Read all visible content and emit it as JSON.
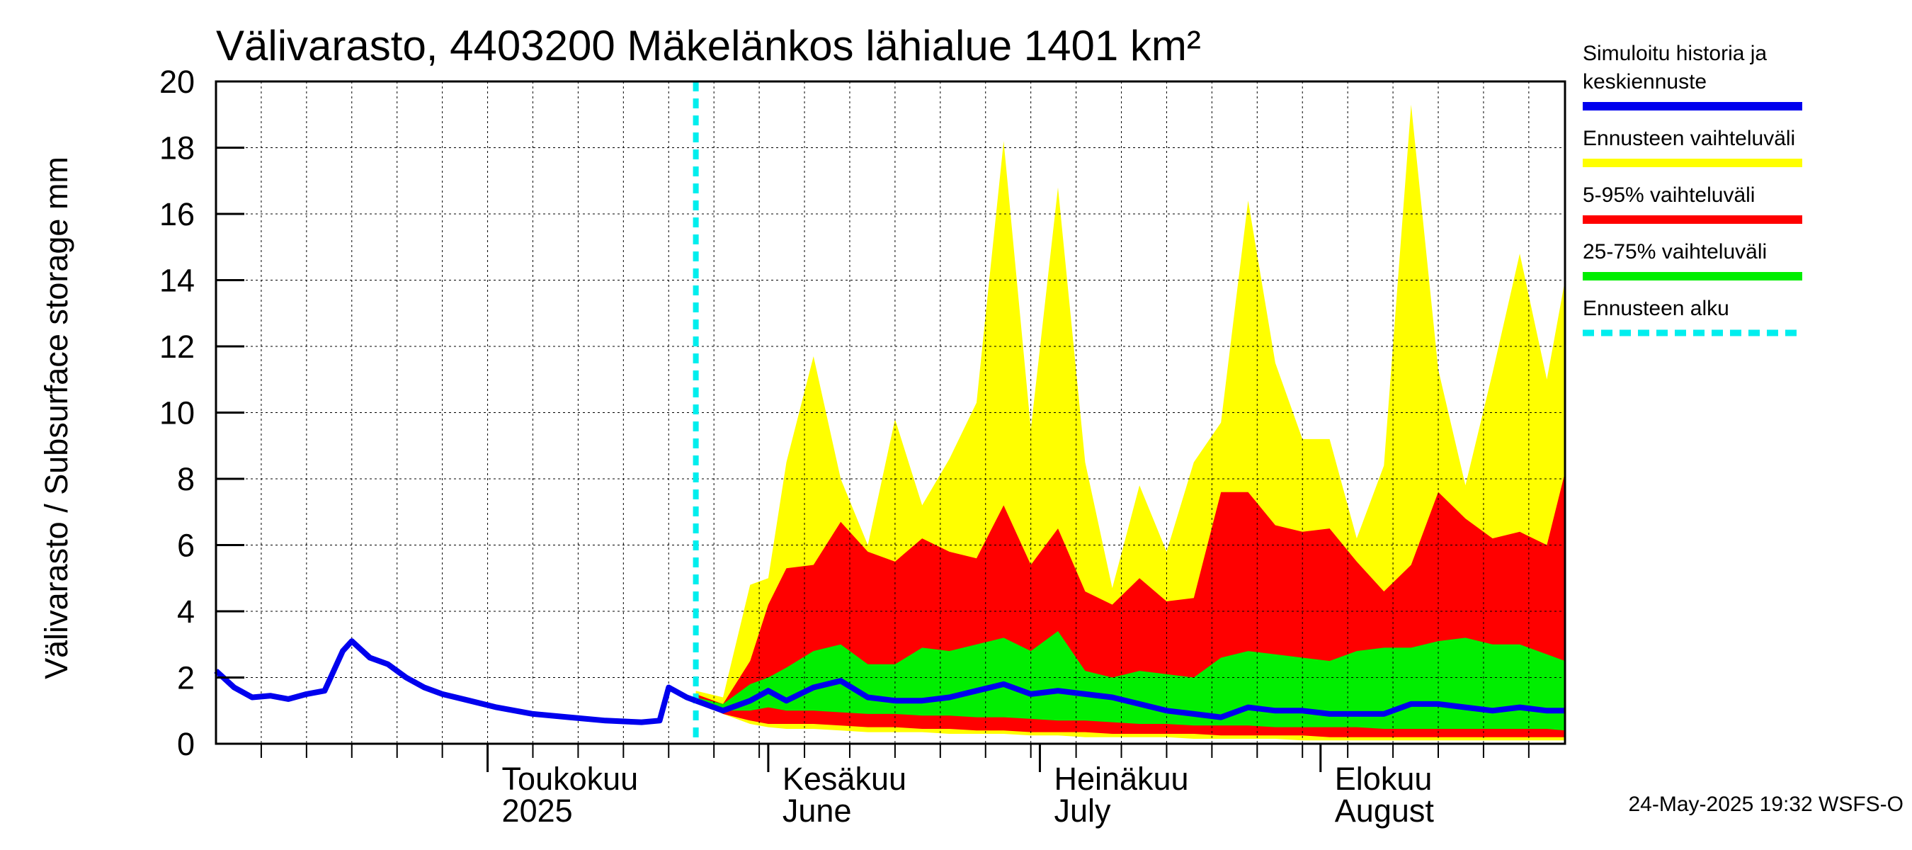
{
  "title": "Välivarasto, 4403200 Mäkelänkos lähialue 1401 km²",
  "ylabel": "Välivarasto / Subsurface storage  mm",
  "timestamp": "24-May-2025 19:32 WSFS-O",
  "colors": {
    "history": "#0000ee",
    "full_range": "#ffff00",
    "p5_95": "#ff0000",
    "p25_75": "#00ee00",
    "forecast_start": "#00eeee",
    "grid": "#000000"
  },
  "legend": [
    {
      "label_lines": [
        "Simuloitu historia ja",
        "keskiennuste"
      ],
      "color": "#0000ee",
      "style": "solid"
    },
    {
      "label_lines": [
        "Ennusteen vaihteluväli"
      ],
      "color": "#ffff00",
      "style": "solid"
    },
    {
      "label_lines": [
        "5-95% vaihteluväli"
      ],
      "color": "#ff0000",
      "style": "solid"
    },
    {
      "label_lines": [
        "25-75% vaihteluväli"
      ],
      "color": "#00ee00",
      "style": "solid"
    },
    {
      "label_lines": [
        "Ennusteen alku"
      ],
      "color": "#00eeee",
      "style": "dashed"
    }
  ],
  "month_labels": [
    {
      "line1": "Toukokuu",
      "line2": "2025",
      "date": "2025-05-01"
    },
    {
      "line1": "Kesäkuu",
      "line2": "June",
      "date": "2025-06-01"
    },
    {
      "line1": "Heinäkuu",
      "line2": "July",
      "date": "2025-07-01"
    },
    {
      "line1": "Elokuu",
      "line2": "August",
      "date": "2025-08-01"
    }
  ],
  "chart_data": {
    "type": "area",
    "x_range": [
      "2025-04-01",
      "2025-08-28"
    ],
    "ylim": [
      0,
      20
    ],
    "yticks": [
      0,
      2,
      4,
      6,
      8,
      10,
      12,
      14,
      16,
      18,
      20
    ],
    "grid": true,
    "legend_position": "right",
    "forecast_start": "2025-05-24",
    "history": {
      "name": "Simuloitu historia ja keskiennuste",
      "x": [
        "2025-04-01",
        "2025-04-03",
        "2025-04-05",
        "2025-04-07",
        "2025-04-09",
        "2025-04-11",
        "2025-04-13",
        "2025-04-15",
        "2025-04-16",
        "2025-04-18",
        "2025-04-20",
        "2025-04-22",
        "2025-04-24",
        "2025-04-26",
        "2025-04-29",
        "2025-05-02",
        "2025-05-06",
        "2025-05-10",
        "2025-05-14",
        "2025-05-18",
        "2025-05-20",
        "2025-05-21",
        "2025-05-23",
        "2025-05-24"
      ],
      "y": [
        2.2,
        1.7,
        1.4,
        1.45,
        1.35,
        1.5,
        1.6,
        2.8,
        3.1,
        2.6,
        2.4,
        2.0,
        1.7,
        1.5,
        1.3,
        1.1,
        0.9,
        0.8,
        0.7,
        0.65,
        0.7,
        1.7,
        1.4,
        1.3
      ]
    },
    "median": {
      "x": [
        "2025-05-24",
        "2025-05-27",
        "2025-05-30",
        "2025-06-01",
        "2025-06-03",
        "2025-06-06",
        "2025-06-09",
        "2025-06-12",
        "2025-06-15",
        "2025-06-18",
        "2025-06-21",
        "2025-06-24",
        "2025-06-27",
        "2025-06-30",
        "2025-07-03",
        "2025-07-06",
        "2025-07-09",
        "2025-07-12",
        "2025-07-15",
        "2025-07-18",
        "2025-07-21",
        "2025-07-24",
        "2025-07-27",
        "2025-07-30",
        "2025-08-02",
        "2025-08-05",
        "2025-08-08",
        "2025-08-11",
        "2025-08-14",
        "2025-08-17",
        "2025-08-20",
        "2025-08-23",
        "2025-08-26",
        "2025-08-28"
      ],
      "y": [
        1.3,
        1.0,
        1.3,
        1.6,
        1.3,
        1.7,
        1.9,
        1.4,
        1.3,
        1.3,
        1.4,
        1.6,
        1.8,
        1.5,
        1.6,
        1.5,
        1.4,
        1.2,
        1.0,
        0.9,
        0.8,
        1.1,
        1.0,
        1.0,
        0.9,
        0.9,
        0.9,
        1.2,
        1.2,
        1.1,
        1.0,
        1.1,
        1.0,
        1.0
      ]
    },
    "bands": {
      "x": [
        "2025-05-24",
        "2025-05-27",
        "2025-05-30",
        "2025-06-01",
        "2025-06-03",
        "2025-06-06",
        "2025-06-09",
        "2025-06-12",
        "2025-06-15",
        "2025-06-18",
        "2025-06-21",
        "2025-06-24",
        "2025-06-27",
        "2025-06-30",
        "2025-07-03",
        "2025-07-06",
        "2025-07-09",
        "2025-07-12",
        "2025-07-15",
        "2025-07-18",
        "2025-07-21",
        "2025-07-24",
        "2025-07-27",
        "2025-07-30",
        "2025-08-02",
        "2025-08-05",
        "2025-08-08",
        "2025-08-11",
        "2025-08-14",
        "2025-08-17",
        "2025-08-20",
        "2025-08-23",
        "2025-08-26",
        "2025-08-28"
      ],
      "full_min": [
        1.3,
        0.9,
        0.6,
        0.5,
        0.45,
        0.45,
        0.4,
        0.35,
        0.35,
        0.35,
        0.3,
        0.3,
        0.3,
        0.25,
        0.25,
        0.2,
        0.2,
        0.2,
        0.2,
        0.15,
        0.15,
        0.15,
        0.15,
        0.1,
        0.1,
        0.1,
        0.1,
        0.1,
        0.1,
        0.1,
        0.1,
        0.1,
        0.1,
        0.1
      ],
      "full_max": [
        1.6,
        1.4,
        4.8,
        5.0,
        8.5,
        11.7,
        8.0,
        6.0,
        9.8,
        7.2,
        8.6,
        10.3,
        18.2,
        9.5,
        16.8,
        8.5,
        4.7,
        7.8,
        5.8,
        8.5,
        9.7,
        16.4,
        11.5,
        9.2,
        9.2,
        6.2,
        8.4,
        19.3,
        11.3,
        7.8,
        11.2,
        14.8,
        11.0,
        14.0
      ],
      "p5": [
        1.3,
        0.9,
        0.7,
        0.6,
        0.6,
        0.6,
        0.55,
        0.5,
        0.5,
        0.45,
        0.45,
        0.4,
        0.4,
        0.35,
        0.35,
        0.35,
        0.3,
        0.3,
        0.3,
        0.3,
        0.25,
        0.25,
        0.25,
        0.25,
        0.2,
        0.2,
        0.2,
        0.2,
        0.2,
        0.2,
        0.2,
        0.2,
        0.2,
        0.2
      ],
      "p95": [
        1.5,
        1.2,
        2.5,
        4.2,
        5.3,
        5.4,
        6.7,
        5.8,
        5.5,
        6.2,
        5.8,
        5.6,
        7.2,
        5.4,
        6.5,
        4.6,
        4.2,
        5.0,
        4.3,
        4.4,
        7.6,
        7.6,
        6.6,
        6.4,
        6.5,
        5.5,
        4.6,
        5.4,
        7.6,
        6.8,
        6.2,
        6.4,
        6.0,
        8.2
      ],
      "p25": [
        1.3,
        1.0,
        1.0,
        1.1,
        1.0,
        1.0,
        0.95,
        0.9,
        0.9,
        0.85,
        0.85,
        0.8,
        0.8,
        0.75,
        0.7,
        0.7,
        0.65,
        0.6,
        0.6,
        0.55,
        0.55,
        0.55,
        0.5,
        0.5,
        0.5,
        0.5,
        0.45,
        0.45,
        0.45,
        0.45,
        0.45,
        0.45,
        0.45,
        0.4
      ],
      "p75": [
        1.4,
        1.2,
        1.8,
        2.0,
        2.3,
        2.8,
        3.0,
        2.4,
        2.4,
        2.9,
        2.8,
        3.0,
        3.2,
        2.8,
        3.4,
        2.2,
        2.0,
        2.2,
        2.1,
        2.0,
        2.6,
        2.8,
        2.7,
        2.6,
        2.5,
        2.8,
        2.9,
        2.9,
        3.1,
        3.2,
        3.0,
        3.0,
        2.7,
        2.5
      ]
    }
  }
}
